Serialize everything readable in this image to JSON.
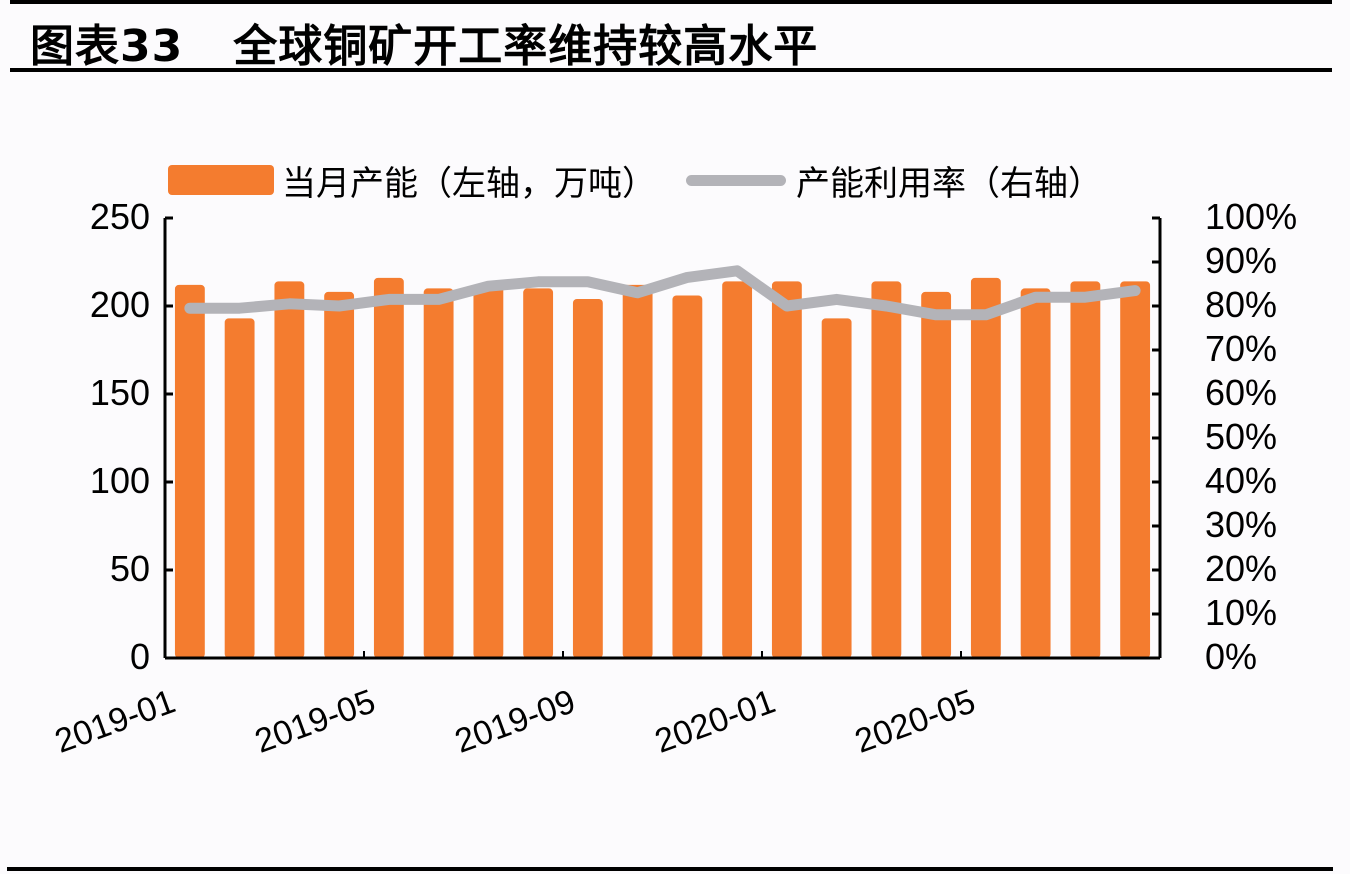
{
  "figure": {
    "number_label": "图表33",
    "title": "全球铜矿开工率维持较高水平"
  },
  "legend": {
    "bar_label": "当月产能（左轴，万吨）",
    "line_label": "产能利用率（右轴）"
  },
  "colors": {
    "bar": "#f47c2f",
    "line": "#b3b3b8",
    "axis": "#000000",
    "background": "#fcfbfd"
  },
  "axes": {
    "left_ticks": [
      "250",
      "200",
      "150",
      "100",
      "50",
      "0"
    ],
    "right_ticks": [
      "100%",
      "90%",
      "80%",
      "70%",
      "60%",
      "50%",
      "40%",
      "30%",
      "20%",
      "10%",
      "0%"
    ],
    "x_tick_labels": [
      "2019-01",
      "2019-05",
      "2019-09",
      "2020-01",
      "2020-05"
    ]
  },
  "chart_data": {
    "type": "bar+line",
    "title": "全球铜矿开工率维持较高水平",
    "categories": [
      "2019-01",
      "2019-02",
      "2019-03",
      "2019-04",
      "2019-05",
      "2019-06",
      "2019-07",
      "2019-08",
      "2019-09",
      "2019-10",
      "2019-11",
      "2019-12",
      "2020-01",
      "2020-02",
      "2020-03",
      "2020-04",
      "2020-05",
      "2020-06",
      "2020-07",
      "2020-08"
    ],
    "series": [
      {
        "name": "当月产能（左轴，万吨）",
        "type": "bar",
        "axis": "left",
        "values": [
          212,
          193,
          214,
          208,
          216,
          210,
          211,
          210,
          204,
          212,
          206,
          214,
          214,
          193,
          214,
          208,
          216,
          210,
          214,
          214
        ]
      },
      {
        "name": "产能利用率（右轴）",
        "type": "line",
        "axis": "right",
        "values": [
          79.5,
          79.5,
          80.5,
          80,
          81.5,
          81.5,
          84.5,
          85.5,
          85.5,
          83,
          86.5,
          88,
          80,
          81.5,
          80,
          78,
          78,
          82,
          82,
          83.5
        ]
      }
    ],
    "xlabel": "",
    "ylabel_left": "万吨",
    "ylabel_right": "%",
    "ylim_left": [
      0,
      250
    ],
    "ylim_right": [
      0,
      100
    ],
    "x_tick_labels": [
      "2019-01",
      "2019-05",
      "2019-09",
      "2020-01",
      "2020-05"
    ],
    "grid": false,
    "legend_position": "top"
  }
}
